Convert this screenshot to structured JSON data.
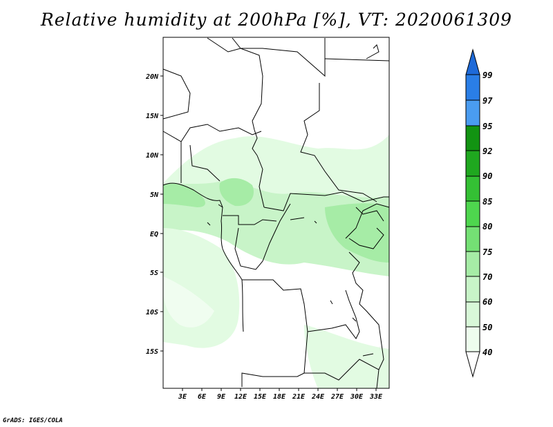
{
  "title": "Relative humidity at 200hPa [%], VT: 2020061309",
  "credit": "GrADS: IGES/COLA",
  "map": {
    "lat_labels": [
      "20N",
      "15N",
      "10N",
      "5N",
      "EQ",
      "5S",
      "10S",
      "15S"
    ],
    "lon_labels": [
      "3E",
      "6E",
      "9E",
      "12E",
      "15E",
      "18E",
      "21E",
      "24E",
      "27E",
      "30E",
      "33E"
    ]
  },
  "colorbar": {
    "levels": [
      "99",
      "97",
      "95",
      "92",
      "90",
      "85",
      "80",
      "75",
      "70",
      "60",
      "50",
      "40"
    ],
    "colors": [
      "#1e6ad8",
      "#2a7ee6",
      "#4a9cf0",
      "#129312",
      "#1fa81f",
      "#34c034",
      "#4ed64e",
      "#74e074",
      "#a6eca6",
      "#c8f4c8",
      "#e2fbe2",
      "#ffffff"
    ]
  }
}
